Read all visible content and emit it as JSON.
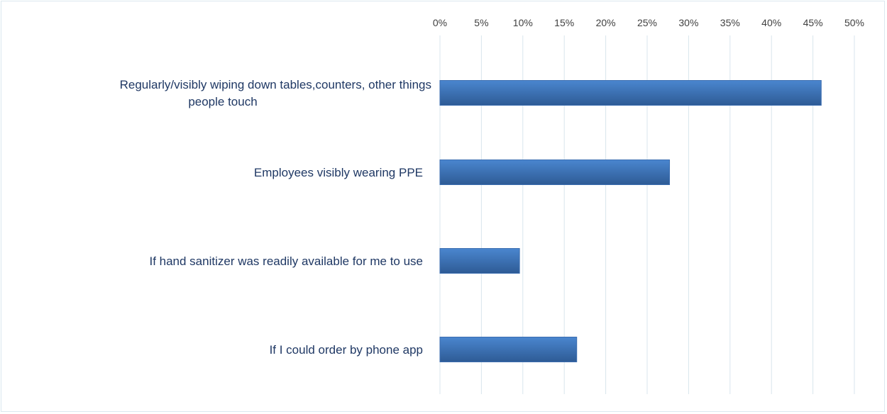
{
  "chart_data": {
    "type": "bar",
    "orientation": "horizontal",
    "title": "",
    "xlabel": "",
    "ylabel": "",
    "categories": [
      [
        "Regularly/visibly wiping down tables,counters, other things",
        "people touch"
      ],
      [
        "Employees visibly wearing PPE"
      ],
      [
        "If hand sanitizer was readily available for me to use"
      ],
      [
        "If I could order by phone app"
      ]
    ],
    "values": [
      46,
      27.7,
      9.6,
      16.5
    ],
    "xlim": [
      0,
      50
    ],
    "x_tick_step": 5,
    "x_tick_labels": [
      "0%",
      "5%",
      "10%",
      "15%",
      "20%",
      "25%",
      "30%",
      "35%",
      "40%",
      "45%",
      "50%"
    ],
    "x_axis_position": "top",
    "grid": true,
    "legend": "none",
    "colors": {
      "bar_light": "#4a86cf",
      "bar_dark": "#2e5b95",
      "bar_stroke": "#3b6db0",
      "grid": "#d9e5ec",
      "category_text": "#1f3864",
      "tick_text": "#404040"
    }
  }
}
